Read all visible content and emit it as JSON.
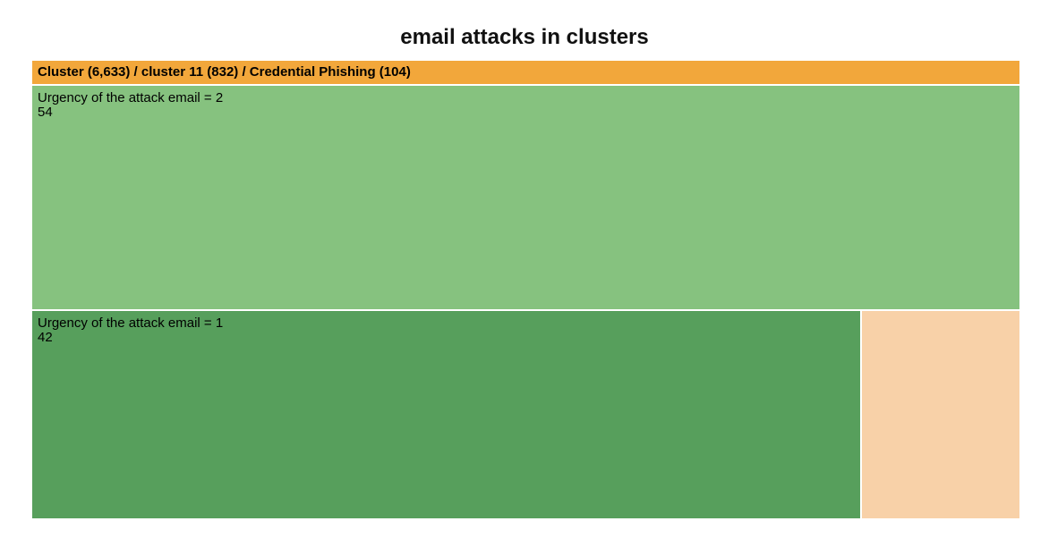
{
  "title": "email attacks in clusters",
  "chart_data": {
    "type": "treemap",
    "title": "email attacks in clusters",
    "path": "Cluster (6,633) / cluster 11 (832) / Credential Phishing (104)",
    "root": {
      "name": "Credential Phishing",
      "value": 104
    },
    "colors": {
      "header": "#f2a73b",
      "urgency_2": "#86c27f",
      "urgency_1": "#579f5c",
      "other": "#f8d1a8"
    },
    "tiles": [
      {
        "key": "urgency_2",
        "label": "Urgency of the attack email = 2",
        "value": 54,
        "value_label": "54"
      },
      {
        "key": "urgency_1",
        "label": "Urgency of the attack email = 1",
        "value": 42,
        "value_label": "42"
      },
      {
        "key": "other",
        "label": "",
        "value": 8,
        "value_label": ""
      }
    ]
  }
}
